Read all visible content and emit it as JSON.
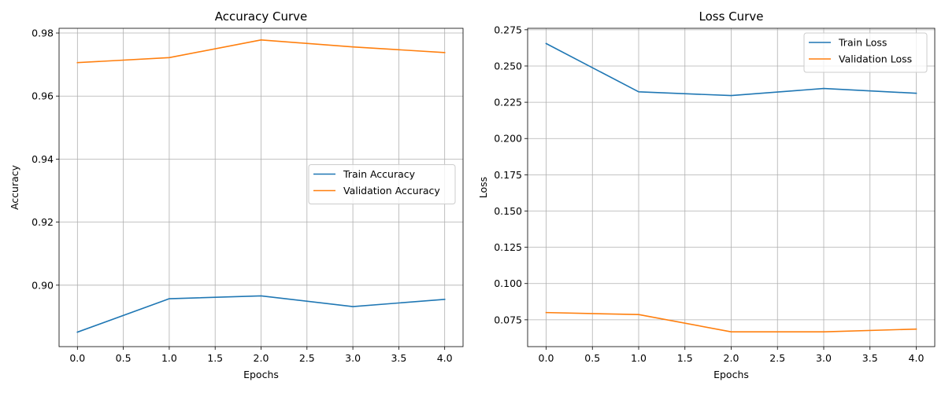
{
  "chart_data": [
    {
      "type": "line",
      "title": "Accuracy Curve",
      "xlabel": "Epochs",
      "ylabel": "Accuracy",
      "x": [
        0,
        1,
        2,
        3,
        4
      ],
      "xlim": [
        -0.2,
        4.2
      ],
      "ylim": [
        0.8805,
        0.9815
      ],
      "xticks": [
        0.0,
        0.5,
        1.0,
        1.5,
        2.0,
        2.5,
        3.0,
        3.5,
        4.0
      ],
      "xtick_labels": [
        "0.0",
        "0.5",
        "1.0",
        "1.5",
        "2.0",
        "2.5",
        "3.0",
        "3.5",
        "4.0"
      ],
      "yticks": [
        0.9,
        0.92,
        0.94,
        0.96,
        0.98
      ],
      "ytick_labels": [
        "0.90",
        "0.92",
        "0.94",
        "0.96",
        "0.98"
      ],
      "grid": true,
      "legend_position": "center-right",
      "series": [
        {
          "name": "Train Accuracy",
          "color": "#1f77b4",
          "values": [
            0.8851,
            0.8957,
            0.8966,
            0.8932,
            0.8955
          ]
        },
        {
          "name": "Validation Accuracy",
          "color": "#ff7f0e",
          "values": [
            0.9706,
            0.9722,
            0.9778,
            0.9756,
            0.9738
          ]
        }
      ]
    },
    {
      "type": "line",
      "title": "Loss Curve",
      "xlabel": "Epochs",
      "ylabel": "Loss",
      "x": [
        0,
        1,
        2,
        3,
        4
      ],
      "xlim": [
        -0.2,
        4.2
      ],
      "ylim": [
        0.0565,
        0.276
      ],
      "xticks": [
        0.0,
        0.5,
        1.0,
        1.5,
        2.0,
        2.5,
        3.0,
        3.5,
        4.0
      ],
      "xtick_labels": [
        "0.0",
        "0.5",
        "1.0",
        "1.5",
        "2.0",
        "2.5",
        "3.0",
        "3.5",
        "4.0"
      ],
      "yticks": [
        0.075,
        0.1,
        0.125,
        0.15,
        0.175,
        0.2,
        0.225,
        0.25,
        0.275
      ],
      "ytick_labels": [
        "0.075",
        "0.100",
        "0.125",
        "0.150",
        "0.175",
        "0.200",
        "0.225",
        "0.250",
        "0.275"
      ],
      "grid": true,
      "legend_position": "top-right",
      "series": [
        {
          "name": "Train Loss",
          "color": "#1f77b4",
          "values": [
            0.2655,
            0.2322,
            0.2296,
            0.2345,
            0.2312
          ]
        },
        {
          "name": "Validation Loss",
          "color": "#ff7f0e",
          "values": [
            0.08,
            0.0786,
            0.0667,
            0.0667,
            0.0686
          ]
        }
      ]
    }
  ]
}
